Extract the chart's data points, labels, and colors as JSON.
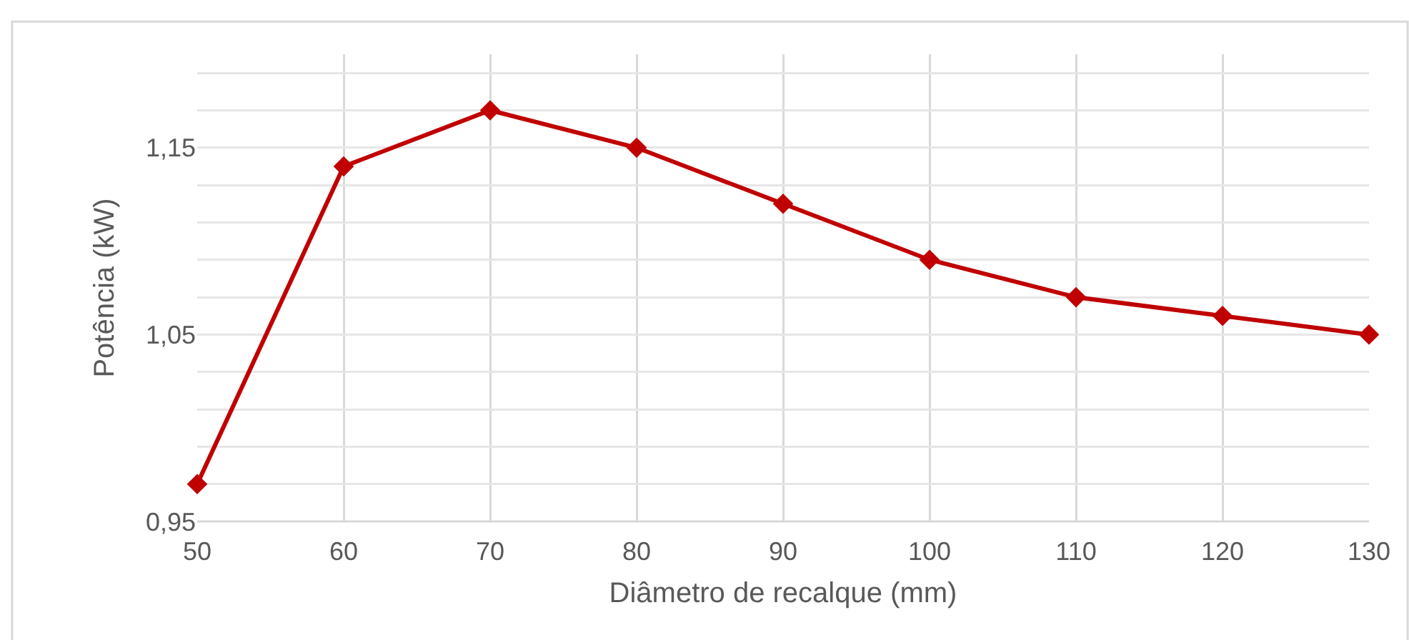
{
  "chart_data": {
    "type": "line",
    "xlabel": "Diâmetro de recalque (mm)",
    "ylabel": "Potência (kW)",
    "x": [
      50,
      60,
      70,
      80,
      90,
      100,
      110,
      120,
      130
    ],
    "series": [
      {
        "color": "#c00000",
        "values": [
          0.97,
          1.14,
          1.17,
          1.15,
          1.12,
          1.09,
          1.07,
          1.06,
          1.05
        ]
      }
    ],
    "xlim": [
      50,
      130
    ],
    "xticks": [
      50,
      60,
      70,
      80,
      90,
      100,
      110,
      120,
      130
    ],
    "ylim": [
      0.95,
      1.2
    ],
    "yticks": [
      {
        "value": 0.95,
        "label": "0,95"
      },
      {
        "value": 0.97,
        "label": null
      },
      {
        "value": 0.99,
        "label": null
      },
      {
        "value": 1.01,
        "label": null
      },
      {
        "value": 1.03,
        "label": null
      },
      {
        "value": 1.05,
        "label": "1,05"
      },
      {
        "value": 1.07,
        "label": null
      },
      {
        "value": 1.09,
        "label": null
      },
      {
        "value": 1.11,
        "label": null
      },
      {
        "value": 1.13,
        "label": null
      },
      {
        "value": 1.15,
        "label": "1,15"
      },
      {
        "value": 1.17,
        "label": null
      },
      {
        "value": 1.19,
        "label": null
      }
    ],
    "grid": true,
    "legend": false,
    "marker": "diamond",
    "line_style": "solid"
  }
}
